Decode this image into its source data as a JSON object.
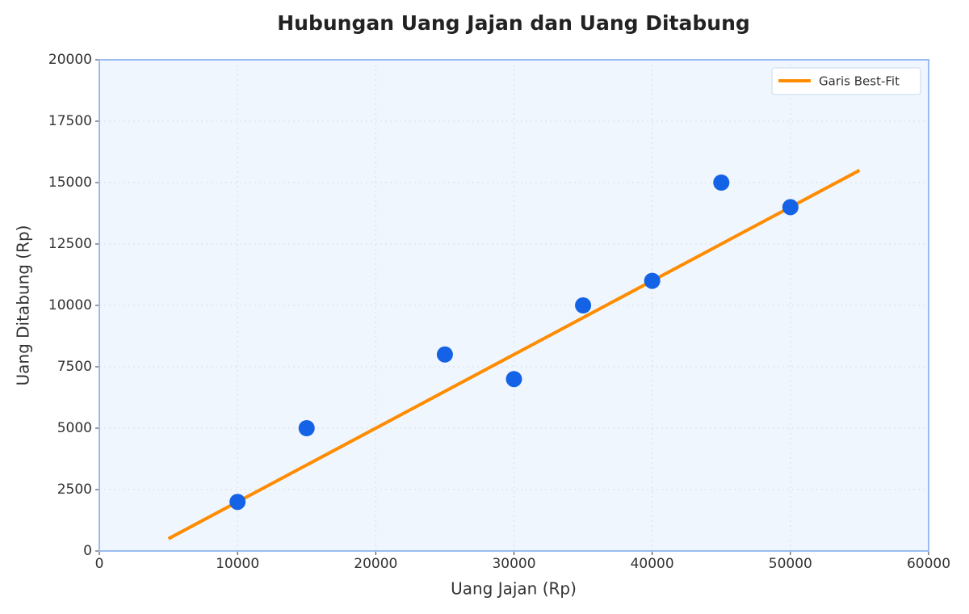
{
  "chart_data": {
    "type": "scatter",
    "title": "Hubungan Uang Jajan dan Uang Ditabung",
    "x_label": "Uang Jajan (Rp)",
    "y_label": "Uang Ditabung (Rp)",
    "x": [
      10000,
      15000,
      25000,
      30000,
      35000,
      40000,
      45000,
      50000
    ],
    "values": [
      2000,
      5000,
      8000,
      7000,
      10000,
      11000,
      15000,
      14000
    ],
    "color": "#1463e6",
    "fit_line": {
      "name": "Garis Best-Fit",
      "color": "#ff8c00",
      "x": [
        5000,
        55000
      ],
      "values": [
        500,
        15500
      ]
    },
    "xlim": [
      0,
      60000
    ],
    "xticks": [
      0,
      10000,
      20000,
      30000,
      40000,
      50000,
      60000
    ],
    "ylim": [
      0,
      20000
    ],
    "yticks": [
      0,
      2500,
      5000,
      7500,
      10000,
      12500,
      15000,
      17500,
      20000
    ],
    "grid": true,
    "legend": "upper-right"
  }
}
